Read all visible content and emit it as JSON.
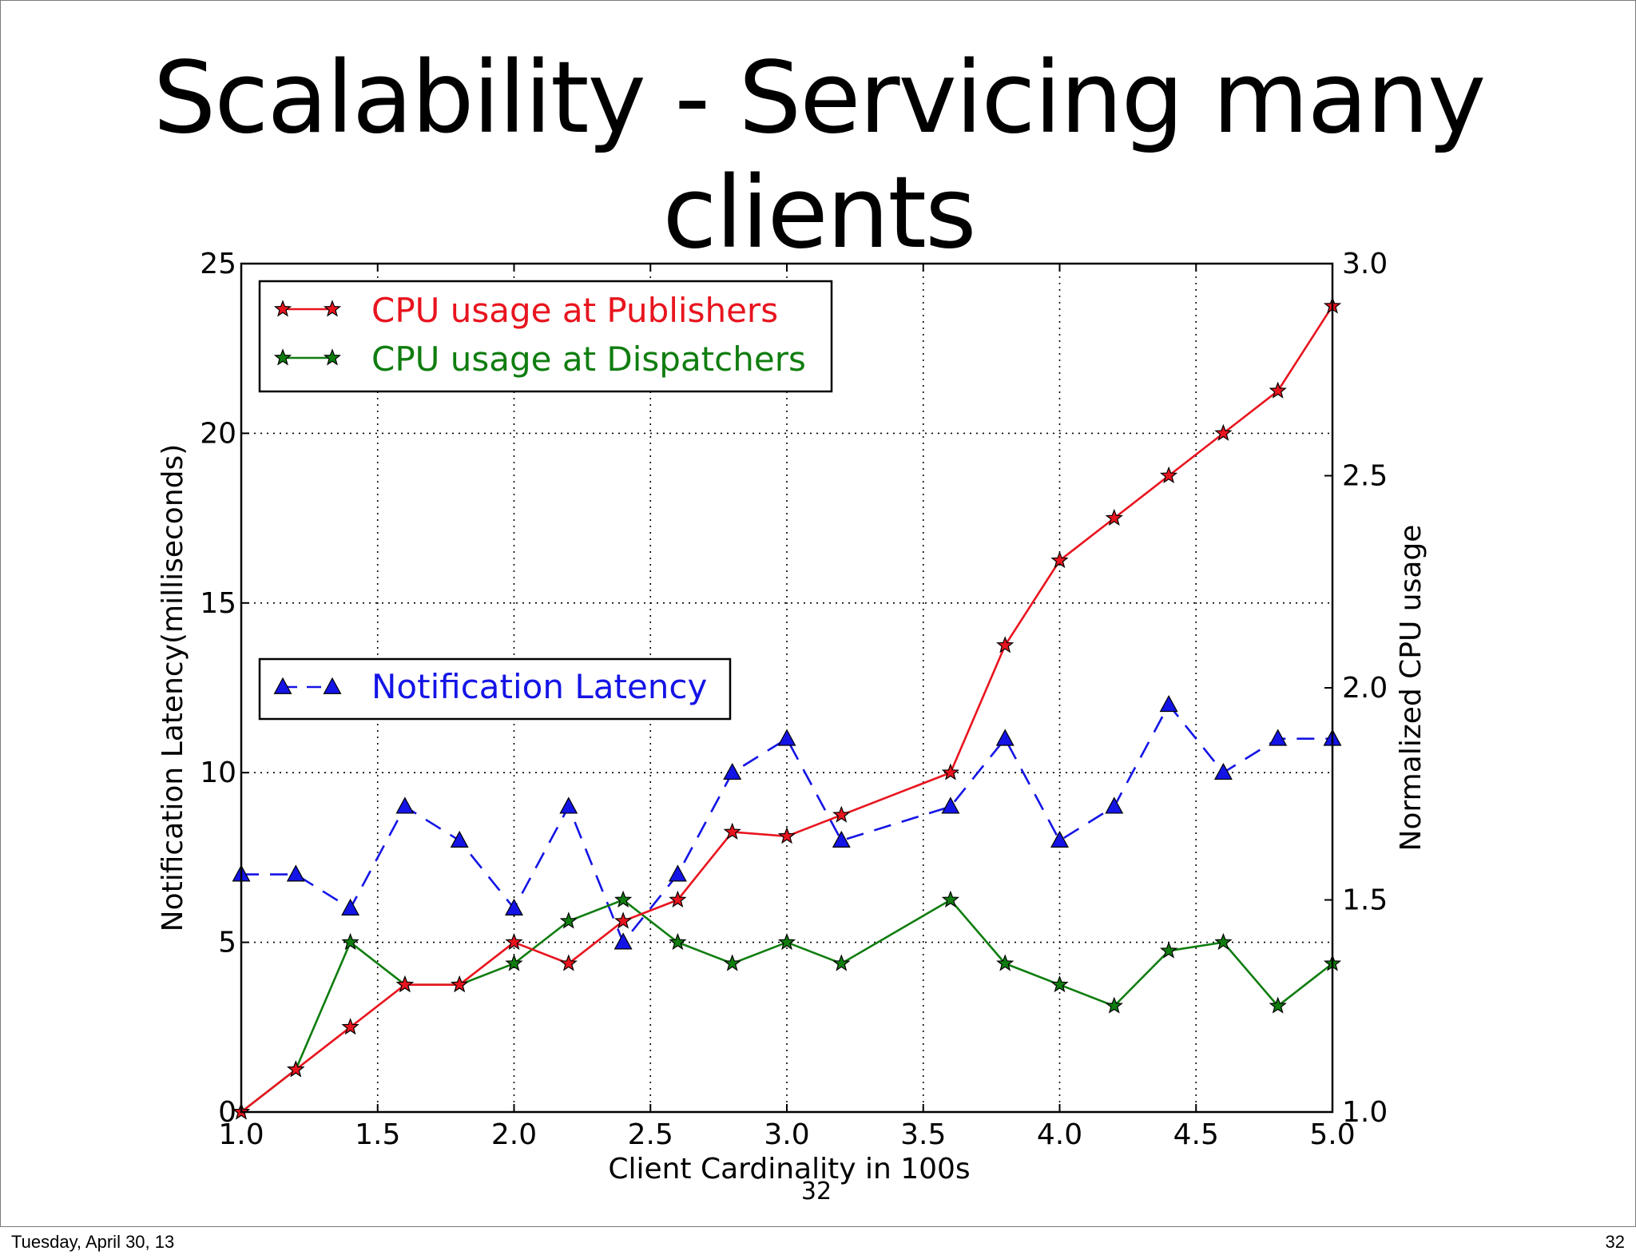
{
  "slide": {
    "title": "Scalability - Servicing many clients",
    "center_number": "32",
    "footer_date": "Tuesday, April 30, 13",
    "footer_number": "32"
  },
  "chart_data": {
    "type": "line",
    "xlabel": "Client Cardinality  in 100s",
    "ylabel_left": "Notification Latency(milliseconds)",
    "ylabel_right": "Normalized CPU usage",
    "xlim": [
      1.0,
      5.0
    ],
    "ylim_left": [
      0,
      25
    ],
    "ylim_right": [
      1.0,
      3.0
    ],
    "grid": true,
    "x_ticks": [
      "1.0",
      "1.5",
      "2.0",
      "2.5",
      "3.0",
      "3.5",
      "4.0",
      "4.5",
      "5.0"
    ],
    "y_left_ticks": [
      "0",
      "5",
      "10",
      "15",
      "20",
      "25"
    ],
    "y_right_ticks": [
      "1.0",
      "1.5",
      "2.0",
      "2.5",
      "3.0"
    ],
    "legends": [
      {
        "location": "upper-left",
        "entries": [
          "CPU usage at Publishers",
          "CPU usage at Dispatchers"
        ]
      },
      {
        "location": "middle-left",
        "entries": [
          "Notification Latency"
        ]
      }
    ],
    "series": [
      {
        "name": "CPU usage at Publishers",
        "axis": "right",
        "color": "#e8141e",
        "marker": "star",
        "line": "solid",
        "x": [
          1.0,
          1.2,
          1.4,
          1.6,
          1.8,
          2.0,
          2.2,
          2.4,
          2.6,
          2.8,
          3.0,
          3.2,
          3.6,
          3.8,
          4.0,
          4.2,
          4.4,
          4.6,
          4.8,
          5.0
        ],
        "y": [
          1.0,
          1.1,
          1.2,
          1.3,
          1.3,
          1.4,
          1.35,
          1.45,
          1.5,
          1.66,
          1.65,
          1.7,
          1.8,
          2.1,
          2.3,
          2.4,
          2.5,
          2.6,
          2.7,
          2.9
        ]
      },
      {
        "name": "CPU usage at Dispatchers",
        "axis": "right",
        "color": "#0f7d0f",
        "marker": "star",
        "line": "solid",
        "x": [
          1.0,
          1.2,
          1.4,
          1.6,
          1.8,
          2.0,
          2.2,
          2.4,
          2.6,
          2.8,
          3.0,
          3.2,
          3.6,
          3.8,
          4.0,
          4.2,
          4.4,
          4.6,
          4.8,
          5.0
        ],
        "y": [
          1.0,
          1.1,
          1.4,
          1.3,
          1.3,
          1.35,
          1.45,
          1.5,
          1.4,
          1.35,
          1.4,
          1.35,
          1.5,
          1.35,
          1.3,
          1.25,
          1.38,
          1.4,
          1.25,
          1.35
        ]
      },
      {
        "name": "Notification Latency",
        "axis": "left",
        "color": "#1414e6",
        "marker": "triangle",
        "line": "dashed",
        "x": [
          1.0,
          1.2,
          1.4,
          1.6,
          1.8,
          2.0,
          2.2,
          2.4,
          2.6,
          2.8,
          3.0,
          3.2,
          3.6,
          3.8,
          4.0,
          4.2,
          4.4,
          4.6,
          4.8,
          5.0
        ],
        "y": [
          7,
          7,
          6,
          9,
          8,
          6,
          9,
          5,
          7,
          10,
          11,
          8,
          9,
          11,
          8,
          9,
          12,
          10,
          11,
          11
        ]
      }
    ]
  }
}
